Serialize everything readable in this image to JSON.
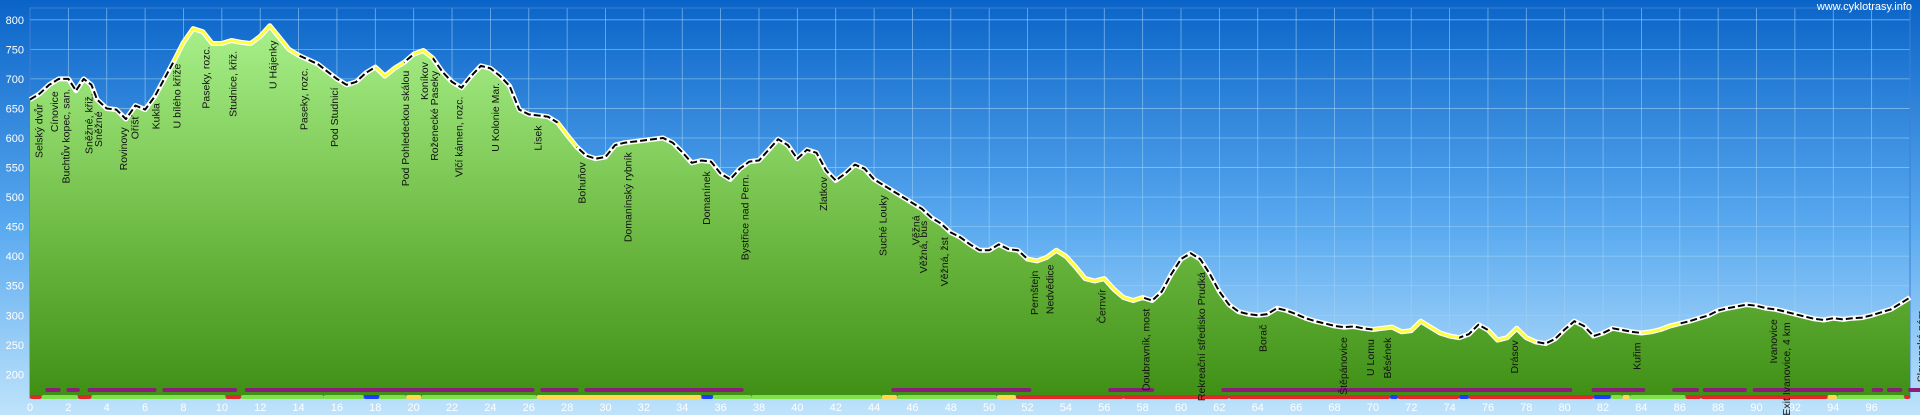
{
  "credit": "www.cyklotrasy.info",
  "chart_data": {
    "type": "area",
    "title": "",
    "xlabel": "",
    "ylabel": "",
    "xlim": [
      0,
      98
    ],
    "ylim": [
      160,
      820
    ],
    "grid": true,
    "x_ticks": [
      0,
      2,
      4,
      6,
      8,
      10,
      12,
      14,
      16,
      18,
      20,
      22,
      24,
      26,
      28,
      30,
      32,
      34,
      36,
      38,
      40,
      42,
      44,
      46,
      48,
      50,
      52,
      54,
      56,
      58,
      60,
      62,
      64,
      66,
      68,
      70,
      72,
      74,
      76,
      78,
      80,
      82,
      84,
      86,
      88,
      90,
      92,
      94,
      96
    ],
    "y_ticks": [
      200,
      250,
      300,
      350,
      400,
      450,
      500,
      550,
      600,
      650,
      700,
      750,
      800
    ],
    "y_tick_labels": [
      "200",
      "250",
      "300",
      "350",
      "400",
      "450",
      "500",
      "550",
      "600",
      "650",
      "700",
      "750",
      "800"
    ],
    "series": [
      {
        "points": [
          [
            0,
            665
          ],
          [
            0.5,
            675
          ],
          [
            1,
            690
          ],
          [
            1.5,
            700
          ],
          [
            2,
            700
          ],
          [
            2.4,
            680
          ],
          [
            2.8,
            700
          ],
          [
            3.2,
            690
          ],
          [
            3.5,
            665
          ],
          [
            4,
            650
          ],
          [
            4.5,
            648
          ],
          [
            5,
            632
          ],
          [
            5.5,
            655
          ],
          [
            6,
            648
          ],
          [
            6.5,
            670
          ],
          [
            7,
            700
          ],
          [
            7.5,
            730
          ],
          [
            8,
            762
          ],
          [
            8.5,
            785
          ],
          [
            9,
            780
          ],
          [
            9.5,
            760
          ],
          [
            10,
            760
          ],
          [
            10.5,
            765
          ],
          [
            11,
            762
          ],
          [
            11.5,
            760
          ],
          [
            12,
            772
          ],
          [
            12.5,
            790
          ],
          [
            13,
            770
          ],
          [
            13.5,
            750
          ],
          [
            14,
            740
          ],
          [
            15,
            725
          ],
          [
            16,
            700
          ],
          [
            16.5,
            690
          ],
          [
            17,
            695
          ],
          [
            17.5,
            710
          ],
          [
            18,
            720
          ],
          [
            18.5,
            705
          ],
          [
            19,
            718
          ],
          [
            19.5,
            728
          ],
          [
            20,
            742
          ],
          [
            20.5,
            748
          ],
          [
            21,
            735
          ],
          [
            21.5,
            712
          ],
          [
            22,
            695
          ],
          [
            22.5,
            685
          ],
          [
            23,
            705
          ],
          [
            23.5,
            722
          ],
          [
            24,
            718
          ],
          [
            24.5,
            705
          ],
          [
            25,
            688
          ],
          [
            25.5,
            648
          ],
          [
            26,
            640
          ],
          [
            26.5,
            638
          ],
          [
            27,
            636
          ],
          [
            27.5,
            626
          ],
          [
            28,
            605
          ],
          [
            28.5,
            585
          ],
          [
            29,
            570
          ],
          [
            29.5,
            565
          ],
          [
            30,
            568
          ],
          [
            30.5,
            588
          ],
          [
            31,
            592
          ],
          [
            32,
            596
          ],
          [
            33,
            600
          ],
          [
            33.5,
            592
          ],
          [
            34,
            576
          ],
          [
            34.5,
            558
          ],
          [
            35,
            562
          ],
          [
            35.5,
            560
          ],
          [
            36,
            540
          ],
          [
            36.5,
            530
          ],
          [
            37,
            548
          ],
          [
            37.5,
            560
          ],
          [
            38,
            562
          ],
          [
            38.5,
            580
          ],
          [
            39,
            598
          ],
          [
            39.5,
            588
          ],
          [
            40,
            565
          ],
          [
            40.5,
            580
          ],
          [
            41,
            575
          ],
          [
            41.5,
            545
          ],
          [
            42,
            528
          ],
          [
            42.5,
            540
          ],
          [
            43,
            555
          ],
          [
            43.5,
            548
          ],
          [
            44,
            530
          ],
          [
            44.5,
            520
          ],
          [
            45,
            510
          ],
          [
            45.5,
            500
          ],
          [
            46,
            490
          ],
          [
            46.5,
            480
          ],
          [
            47,
            465
          ],
          [
            47.5,
            455
          ],
          [
            48,
            440
          ],
          [
            48.5,
            432
          ],
          [
            49,
            420
          ],
          [
            49.5,
            410
          ],
          [
            50,
            410
          ],
          [
            50.5,
            420
          ],
          [
            51,
            412
          ],
          [
            51.5,
            410
          ],
          [
            52,
            395
          ],
          [
            52.5,
            392
          ],
          [
            53,
            398
          ],
          [
            53.5,
            410
          ],
          [
            54,
            400
          ],
          [
            54.5,
            382
          ],
          [
            55,
            362
          ],
          [
            55.5,
            358
          ],
          [
            56,
            362
          ],
          [
            56.5,
            344
          ],
          [
            57,
            330
          ],
          [
            57.5,
            325
          ],
          [
            58,
            330
          ],
          [
            58.5,
            325
          ],
          [
            59,
            340
          ],
          [
            59.5,
            370
          ],
          [
            60,
            395
          ],
          [
            60.5,
            405
          ],
          [
            61,
            395
          ],
          [
            61.5,
            370
          ],
          [
            62,
            340
          ],
          [
            62.5,
            318
          ],
          [
            63,
            306
          ],
          [
            63.5,
            302
          ],
          [
            64,
            300
          ],
          [
            64.5,
            302
          ],
          [
            65,
            312
          ],
          [
            65.5,
            308
          ],
          [
            66,
            302
          ],
          [
            66.5,
            295
          ],
          [
            67,
            290
          ],
          [
            67.5,
            286
          ],
          [
            68,
            282
          ],
          [
            68.5,
            280
          ],
          [
            69,
            281
          ],
          [
            69.5,
            278
          ],
          [
            70,
            276
          ],
          [
            70.5,
            278
          ],
          [
            71,
            280
          ],
          [
            71.5,
            272
          ],
          [
            72,
            274
          ],
          [
            72.5,
            290
          ],
          [
            73,
            280
          ],
          [
            73.5,
            270
          ],
          [
            74,
            265
          ],
          [
            74.5,
            262
          ],
          [
            75,
            268
          ],
          [
            75.5,
            284
          ],
          [
            76,
            275
          ],
          [
            76.5,
            258
          ],
          [
            77,
            262
          ],
          [
            77.5,
            278
          ],
          [
            78,
            262
          ],
          [
            78.5,
            255
          ],
          [
            79,
            252
          ],
          [
            79.5,
            260
          ],
          [
            80,
            276
          ],
          [
            80.5,
            290
          ],
          [
            81,
            282
          ],
          [
            81.5,
            265
          ],
          [
            82,
            270
          ],
          [
            82.5,
            278
          ],
          [
            83,
            275
          ],
          [
            83.5,
            272
          ],
          [
            84,
            270
          ],
          [
            84.5,
            272
          ],
          [
            85,
            276
          ],
          [
            85.5,
            282
          ],
          [
            86,
            286
          ],
          [
            86.5,
            290
          ],
          [
            87,
            295
          ],
          [
            87.5,
            300
          ],
          [
            88,
            308
          ],
          [
            88.5,
            312
          ],
          [
            89,
            315
          ],
          [
            89.5,
            318
          ],
          [
            90,
            316
          ],
          [
            90.5,
            312
          ],
          [
            91,
            310
          ],
          [
            91.5,
            306
          ],
          [
            92,
            302
          ],
          [
            92.5,
            298
          ],
          [
            93,
            294
          ],
          [
            93.5,
            292
          ],
          [
            94,
            295
          ],
          [
            94.5,
            293
          ],
          [
            95,
            295
          ],
          [
            95.5,
            296
          ],
          [
            96,
            300
          ],
          [
            96.5,
            305
          ],
          [
            97,
            310
          ],
          [
            97.5,
            320
          ],
          [
            98,
            330
          ]
        ]
      }
    ],
    "annotations": [
      {
        "x": 0.5,
        "text": "Selský dvůr"
      },
      {
        "x": 1.3,
        "text": "Cínovice"
      },
      {
        "x": 1.9,
        "text": "Buchtův kopec, san."
      },
      {
        "x": 3.1,
        "text": "Sněžné, křiž."
      },
      {
        "x": 3.6,
        "text": "Sněžné"
      },
      {
        "x": 4.9,
        "text": "Rovinovy"
      },
      {
        "x": 5.5,
        "text": "Oříšť"
      },
      {
        "x": 6.6,
        "text": "Kukla"
      },
      {
        "x": 7.7,
        "text": "U bílého kříže"
      },
      {
        "x": 9.2,
        "text": "Paseky, rozc."
      },
      {
        "x": 10.6,
        "text": "Studnice, křiž."
      },
      {
        "x": 12.7,
        "text": "U Hájenky"
      },
      {
        "x": 14.3,
        "text": "Paseky, rozc."
      },
      {
        "x": 15.9,
        "text": "Pod Studnicí"
      },
      {
        "x": 19.6,
        "text": "Pod Pohledeckou skálou"
      },
      {
        "x": 20.6,
        "text": "Koníkov"
      },
      {
        "x": 21.1,
        "text": "Roženecké Paseky"
      },
      {
        "x": 22.4,
        "text": "Vlčí kámen, rozc."
      },
      {
        "x": 24.3,
        "text": "U Kolonie Mar."
      },
      {
        "x": 26.5,
        "text": "Lísek"
      },
      {
        "x": 28.8,
        "text": "Bohuňov"
      },
      {
        "x": 31.2,
        "text": "Domanínský rybník"
      },
      {
        "x": 35.3,
        "text": "Domanínek"
      },
      {
        "x": 37.3,
        "text": "Bystřice nad Pern."
      },
      {
        "x": 41.4,
        "text": "Zlatkov"
      },
      {
        "x": 44.5,
        "text": "Suché Louky"
      },
      {
        "x": 46.2,
        "text": "Věžná"
      },
      {
        "x": 46.6,
        "text": "Věžná, bus"
      },
      {
        "x": 47.7,
        "text": "Věžná, žst"
      },
      {
        "x": 52.4,
        "text": "Pernštejn"
      },
      {
        "x": 53.2,
        "text": "Nedvědice"
      },
      {
        "x": 55.9,
        "text": "Černvír"
      },
      {
        "x": 58.2,
        "text": "Doubravník, most"
      },
      {
        "x": 61.1,
        "text": "Rekreační středisko Prudká"
      },
      {
        "x": 64.3,
        "text": "Borač"
      },
      {
        "x": 68.5,
        "text": "Štěpánovice"
      },
      {
        "x": 69.9,
        "text": "U Lomu"
      },
      {
        "x": 70.8,
        "text": "Běsének"
      },
      {
        "x": 77.4,
        "text": "Drásov"
      },
      {
        "x": 83.8,
        "text": "Kuřim"
      },
      {
        "x": 90.9,
        "text": "Ivanovice"
      },
      {
        "x": 91.6,
        "text": "Exit Ivanovice, 4 km"
      },
      {
        "x": 98.6,
        "text": "Slovanské nám."
      }
    ]
  },
  "colors": {
    "background_top": "#0a64c8",
    "background_bottom": "#bfe3fb",
    "grid": "#9fd0f5",
    "plot_border": "#3f7fd3",
    "area_top": "#a8f08a",
    "area_bottom": "#3f8f15",
    "profile_line": "#000000",
    "profile_halo": "#ffffff",
    "track_highlight": "#ffff33",
    "strip_purple": "#8a1e7a",
    "strip_red": "#e02828",
    "strip_yellow": "#ffd84d",
    "strip_blue": "#1a3cff",
    "strip_green": "#7ee04a",
    "axis_text": "#ffffff",
    "label_text": "#111111"
  }
}
